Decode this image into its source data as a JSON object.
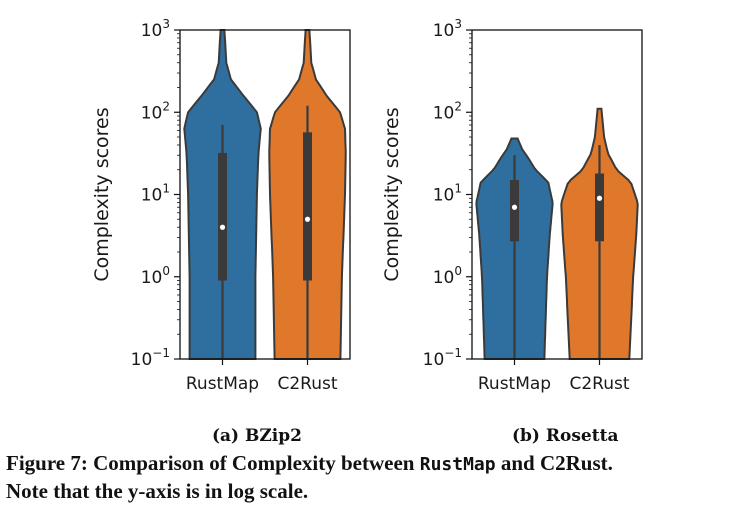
{
  "chart_data": [
    {
      "type": "violin",
      "subcaption": "(a) BZip2",
      "ylabel": "Complexity scores",
      "yscale": "log",
      "ylim": [
        0.1,
        1000
      ],
      "yticks": [
        "10^-1",
        "10^0",
        "10^1",
        "10^2",
        "10^3"
      ],
      "categories": [
        "RustMap",
        "C2Rust"
      ],
      "series": [
        {
          "name": "RustMap",
          "color": "#2f6f9f",
          "median": 4,
          "q1": 0.9,
          "q3": 32,
          "whisker_low": 0.1,
          "whisker_high": 70,
          "min": 0.1,
          "max": 1000
        },
        {
          "name": "C2Rust",
          "color": "#e0782c",
          "median": 5,
          "q1": 0.9,
          "q3": 57,
          "whisker_low": 0.1,
          "whisker_high": 120,
          "min": 0.1,
          "max": 1000
        }
      ]
    },
    {
      "type": "violin",
      "subcaption": "(b) Rosetta",
      "ylabel": "Complexity scores",
      "yscale": "log",
      "ylim": [
        0.1,
        1000
      ],
      "yticks": [
        "10^-1",
        "10^0",
        "10^1",
        "10^2",
        "10^3"
      ],
      "categories": [
        "RustMap",
        "C2Rust"
      ],
      "series": [
        {
          "name": "RustMap",
          "color": "#2f6f9f",
          "median": 7,
          "q1": 2.7,
          "q3": 15,
          "whisker_low": 0.1,
          "whisker_high": 30,
          "min": 0.1,
          "max": 48
        },
        {
          "name": "C2Rust",
          "color": "#e0782c",
          "median": 9,
          "q1": 2.7,
          "q3": 18,
          "whisker_low": 0.1,
          "whisker_high": 40,
          "min": 0.1,
          "max": 110
        }
      ]
    }
  ],
  "caption": {
    "part1": "Figure 7: Comparison of Complexity between ",
    "code": "RustMap",
    "part2": " and C2Rust.",
    "line2": "Note that the y-axis is in log scale."
  }
}
